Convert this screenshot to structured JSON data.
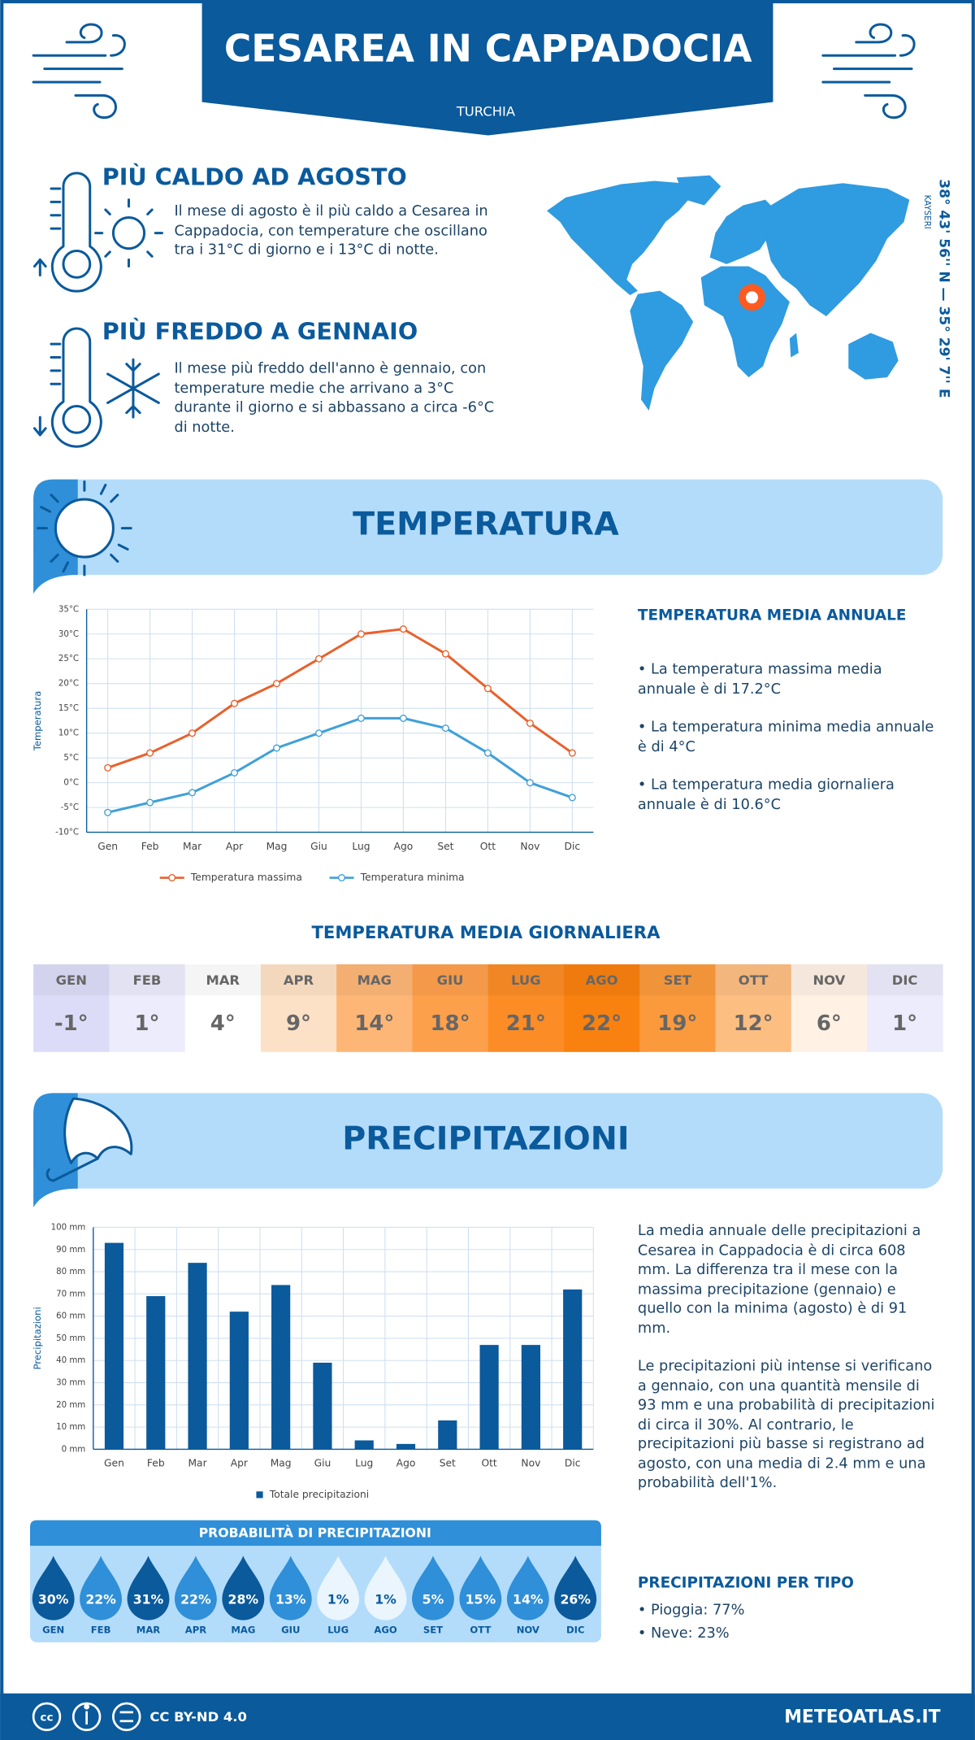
{
  "header": {
    "title": "CESAREA IN CAPPADOCIA",
    "country": "TURCHIA"
  },
  "highlights": [
    {
      "title": "PIÙ CALDO AD AGOSTO",
      "text": "Il mese di agosto è il più caldo a Cesarea in Cappadocia, con temperature che oscillano tra i 31°C di giorno e i 13°C di notte."
    },
    {
      "title": "PIÙ FREDDO A GENNAIO",
      "text": "Il mese più freddo dell'anno è gennaio, con temperature medie che arrivano a 3°C durante il giorno e si abbassano a circa -6°C di notte."
    }
  ],
  "location": {
    "coordinates": "38° 43' 56'' N — 35° 29' 7'' E",
    "city": "KAYSERI"
  },
  "sections": {
    "temperature": "TEMPERATURA",
    "precipitation": "PRECIPITAZIONI"
  },
  "chart_data": [
    {
      "type": "line",
      "y_label": "Temperatura",
      "categories": [
        "Gen",
        "Feb",
        "Mar",
        "Apr",
        "Mag",
        "Giu",
        "Lug",
        "Ago",
        "Set",
        "Ott",
        "Nov",
        "Dic"
      ],
      "series": [
        {
          "name": "Temperatura massima",
          "color": "#e8612c",
          "values": [
            3,
            6,
            10,
            16,
            20,
            25,
            30,
            31,
            26,
            19,
            12,
            6
          ]
        },
        {
          "name": "Temperatura minima",
          "color": "#3fa0d8",
          "values": [
            -6,
            -4,
            -2,
            2,
            7,
            10,
            13,
            13,
            11,
            6,
            0,
            -3
          ]
        }
      ],
      "ylim": [
        -10,
        35
      ],
      "yticks": [
        {
          "value": -10,
          "label": "-10°C"
        },
        {
          "value": -5,
          "label": "-5°C"
        },
        {
          "value": 0,
          "label": "0°C"
        },
        {
          "value": 5,
          "label": "5°C"
        },
        {
          "value": 10,
          "label": "10°C"
        },
        {
          "value": 15,
          "label": "15°C"
        },
        {
          "value": 20,
          "label": "20°C"
        },
        {
          "value": 25,
          "label": "25°C"
        },
        {
          "value": 30,
          "label": "30°C"
        },
        {
          "value": 35,
          "label": "35°C"
        }
      ],
      "grid": true
    },
    {
      "type": "bar",
      "y_label": "Precipitazioni",
      "categories": [
        "Gen",
        "Feb",
        "Mar",
        "Apr",
        "Mag",
        "Giu",
        "Lug",
        "Ago",
        "Set",
        "Ott",
        "Nov",
        "Dic"
      ],
      "series": [
        {
          "name": "Totale precipitazioni",
          "color": "#0a5a9c",
          "values": [
            93,
            69,
            84,
            62,
            74,
            39,
            4,
            2.4,
            13,
            47,
            47,
            72
          ]
        }
      ],
      "ylim": [
        0,
        100
      ],
      "yticks": [
        {
          "value": 0,
          "label": "0 mm"
        },
        {
          "value": 10,
          "label": "10 mm"
        },
        {
          "value": 20,
          "label": "20 mm"
        },
        {
          "value": 30,
          "label": "30 mm"
        },
        {
          "value": 40,
          "label": "40 mm"
        },
        {
          "value": 50,
          "label": "50 mm"
        },
        {
          "value": 60,
          "label": "60 mm"
        },
        {
          "value": 70,
          "label": "70 mm"
        },
        {
          "value": 80,
          "label": "80 mm"
        },
        {
          "value": 90,
          "label": "90 mm"
        },
        {
          "value": 100,
          "label": "100 mm"
        }
      ],
      "grid": true
    }
  ],
  "temperature_summary": {
    "title": "TEMPERATURA MEDIA ANNUALE",
    "items": [
      "• La temperatura massima media annuale è di 17.2°C",
      "• La temperatura minima media annuale è di 4°C",
      "• La temperatura media giornaliera annuale è di 10.6°C"
    ]
  },
  "daily_table": {
    "title": "TEMPERATURA MEDIA GIORNALIERA",
    "months": [
      "GEN",
      "FEB",
      "MAR",
      "APR",
      "MAG",
      "GIU",
      "LUG",
      "AGO",
      "SET",
      "OTT",
      "NOV",
      "DIC"
    ],
    "values": [
      -1,
      1,
      4,
      9,
      14,
      18,
      21,
      22,
      19,
      12,
      6,
      1
    ],
    "value_labels": [
      "-1°",
      "1°",
      "4°",
      "9°",
      "14°",
      "18°",
      "21°",
      "22°",
      "19°",
      "12°",
      "6°",
      "1°"
    ],
    "colors": [
      "#dddcf8",
      "#ececfc",
      "#ffffff",
      "#fde1c6",
      "#fdb676",
      "#fda04c",
      "#fb8c26",
      "#f9810f",
      "#fb9a3c",
      "#fdbe82",
      "#fff1e4",
      "#ececfc"
    ]
  },
  "precipitation_text": [
    "La media annuale delle precipitazioni a Cesarea in Cappadocia è di circa 608 mm. La differenza tra il mese con la massima precipitazione (gennaio) e quello con la minima (agosto) è di 91 mm.",
    "Le precipitazioni più intense si verificano a gennaio, con una quantità mensile di 93 mm e una probabilità di precipitazioni di circa il 30%. Al contrario, le precipitazioni più basse si registrano ad agosto, con una media di 2.4 mm e una probabilità dell'1%."
  ],
  "probability": {
    "title": "PROBABILITÀ DI PRECIPITAZIONI",
    "categories": [
      "GEN",
      "FEB",
      "MAR",
      "APR",
      "MAG",
      "GIU",
      "LUG",
      "AGO",
      "SET",
      "OTT",
      "NOV",
      "DIC"
    ],
    "values": [
      30,
      22,
      31,
      22,
      28,
      13,
      1,
      1,
      5,
      15,
      14,
      26
    ],
    "value_labels": [
      "30%",
      "22%",
      "31%",
      "22%",
      "28%",
      "13%",
      "1%",
      "1%",
      "5%",
      "15%",
      "14%",
      "26%"
    ]
  },
  "precipitation_type": {
    "title": "PRECIPITAZIONI PER TIPO",
    "items": [
      "• Pioggia: 77%",
      "• Neve: 23%"
    ]
  },
  "footer": {
    "license": "CC BY-ND 4.0",
    "site": "METEOATLAS.IT"
  }
}
